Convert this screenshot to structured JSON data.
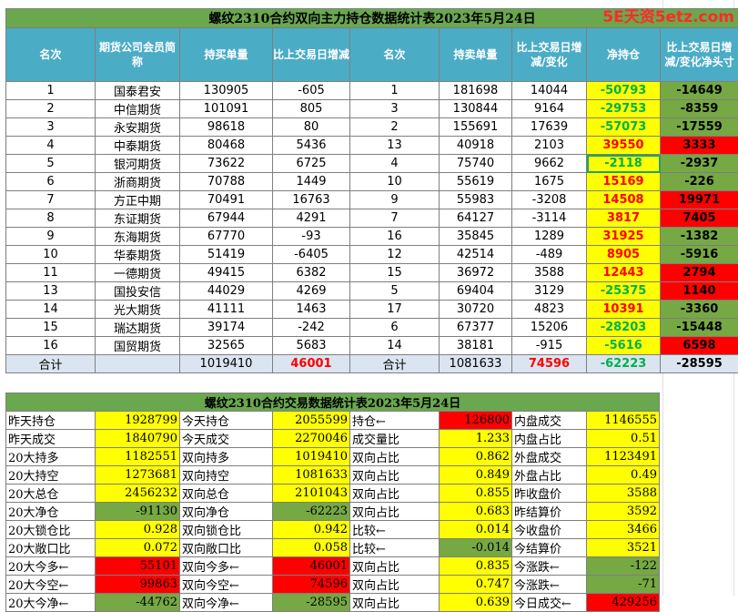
{
  "watermark": "5E天资5etz.com",
  "pos_table": {
    "title": "螺纹2310合约双向主力持仓数据统计表2023年5月24日",
    "headers": [
      "名次",
      "期货公司会员简称",
      "持买单量",
      "比上交易日增减",
      "名次",
      "持卖单量",
      "比上交易日增减/变化",
      "净持仓",
      "比上交易日增减/变化净头寸"
    ],
    "rows": [
      [
        "1",
        "国泰君安",
        "130905",
        "-605",
        "1",
        "181698",
        "14044",
        "-50793",
        "-14649"
      ],
      [
        "2",
        "中信期货",
        "101091",
        "805",
        "3",
        "130844",
        "9164",
        "-29753",
        "-8359"
      ],
      [
        "3",
        "永安期货",
        "98618",
        "80",
        "2",
        "155691",
        "17639",
        "-57073",
        "-17559"
      ],
      [
        "4",
        "中泰期货",
        "80468",
        "5436",
        "13",
        "40918",
        "2103",
        "39550",
        "3333"
      ],
      [
        "5",
        "银河期货",
        "73622",
        "6725",
        "4",
        "75740",
        "9662",
        "-2118",
        "-2937"
      ],
      [
        "6",
        "浙商期货",
        "70788",
        "1449",
        "10",
        "55619",
        "1675",
        "15169",
        "-226"
      ],
      [
        "7",
        "方正中期",
        "70491",
        "16763",
        "9",
        "55983",
        "-3208",
        "14508",
        "19971"
      ],
      [
        "8",
        "东证期货",
        "67944",
        "4291",
        "7",
        "64127",
        "-3114",
        "3817",
        "7405"
      ],
      [
        "9",
        "东海期货",
        "67770",
        "-93",
        "16",
        "35845",
        "1289",
        "31925",
        "-1382"
      ],
      [
        "10",
        "华泰期货",
        "51419",
        "-6405",
        "12",
        "42514",
        "-489",
        "8905",
        "-5916"
      ],
      [
        "11",
        "一德期货",
        "49415",
        "6382",
        "15",
        "36972",
        "3588",
        "12443",
        "2794"
      ],
      [
        "13",
        "国投安信",
        "44029",
        "4269",
        "5",
        "69404",
        "3129",
        "-25375",
        "1140"
      ],
      [
        "14",
        "光大期货",
        "41111",
        "1463",
        "17",
        "30720",
        "4823",
        "10391",
        "-3360"
      ],
      [
        "15",
        "瑞达期货",
        "39174",
        "-242",
        "6",
        "67377",
        "15206",
        "-28203",
        "-15448"
      ],
      [
        "16",
        "国贸期货",
        "32565",
        "5683",
        "14",
        "38181",
        "-915",
        "-5616",
        "6598"
      ]
    ],
    "total": [
      "合计",
      "",
      "1019410",
      "46001",
      "合计",
      "1081633",
      "74596",
      "-62223",
      "-28595"
    ]
  },
  "trade_table": {
    "title": "螺纹2310合约交易数据统计表2023年5月24日",
    "rows": [
      [
        "昨天持仓",
        "1928799",
        "今天持仓",
        "2055599",
        "持仓←",
        "126800",
        "内盘成交",
        "1146555"
      ],
      [
        "昨天成交",
        "1840790",
        "今天成交",
        "2270046",
        "成交量比",
        "1.233",
        "内盘占比",
        "0.51"
      ],
      [
        "20大持多",
        "1182551",
        "双向持多",
        "1019410",
        "双向占比",
        "0.862",
        "外盘成交",
        "1123491"
      ],
      [
        "20大持空",
        "1273681",
        "双向持空",
        "1081633",
        "双向占比",
        "0.849",
        "外盘占比",
        "0.49"
      ],
      [
        "20大总仓",
        "2456232",
        "双向总仓",
        "2101043",
        "双向占比",
        "0.855",
        "昨收盘价",
        "3588"
      ],
      [
        "20大净仓",
        "-91130",
        "双向净仓",
        "-62223",
        "双向占比",
        "0.683",
        "昨结算价",
        "3592"
      ],
      [
        "20大锁仓比",
        "0.928",
        "双向锁仓比",
        "0.942",
        "比较←",
        "0.014",
        "今收盘价",
        "3466"
      ],
      [
        "20大敞口比",
        "0.072",
        "双向敞口比",
        "0.058",
        "比较←",
        "-0.014",
        "今结算价",
        "3521"
      ],
      [
        "20大今多←",
        "55101",
        "双向今多←",
        "46001",
        "双向占比",
        "0.835",
        "今涨跌←",
        "-122"
      ],
      [
        "20大今空←",
        "99863",
        "双向今空←",
        "74596",
        "双向占比",
        "0.747",
        "今涨跌←",
        "-71"
      ],
      [
        "20大今净←",
        "-44762",
        "双向今净←",
        "-28595",
        "双向占比",
        "0.639",
        "今日成交←",
        "429256"
      ]
    ]
  },
  "colors": {
    "title_green": "#6aa84f",
    "header_blue": "#4bacc6",
    "yellow": "#ffff00",
    "green": "#76a844",
    "red": "#ff0000",
    "total_bg": "#dbe5f1"
  }
}
